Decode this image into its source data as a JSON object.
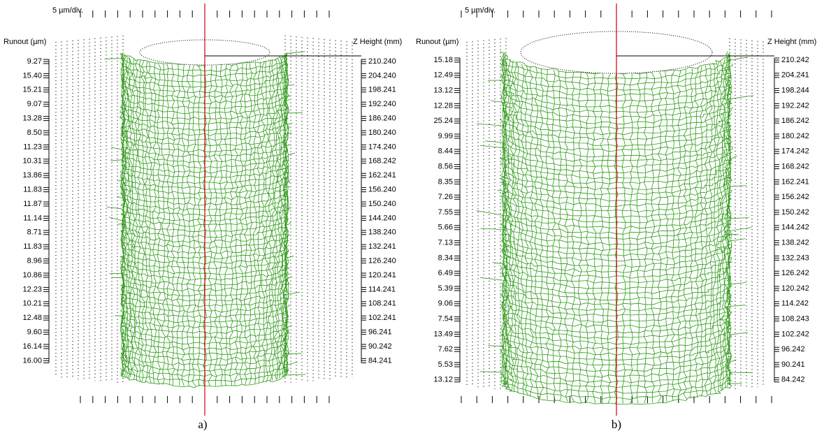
{
  "panels": [
    {
      "scale": "5 µm/div.",
      "left_title": "Runout (µm)",
      "right_title": "Z Height (mm)",
      "runout": [
        "9.27",
        "15.40",
        "15.21",
        "9.07",
        "13.28",
        "8.50",
        "11.23",
        "10.31",
        "13.86",
        "11.83",
        "11.87",
        "11.14",
        "8.71",
        "11.83",
        "8.96",
        "10.86",
        "12.23",
        "10.21",
        "12.48",
        "9.60",
        "16.14",
        "16.00"
      ],
      "z_height": [
        "210.240",
        "204.240",
        "198.241",
        "192.240",
        "186.240",
        "180.240",
        "174.240",
        "168.242",
        "162.241",
        "156.240",
        "150.240",
        "144.240",
        "138.240",
        "132.241",
        "126.240",
        "120.241",
        "114.241",
        "108.241",
        "102.241",
        "96.241",
        "90.242",
        "84.241"
      ],
      "caption": "a)"
    },
    {
      "scale": "5 µm/div.",
      "left_title": "Runout (µm)",
      "right_title": "Z Height (mm)",
      "runout": [
        "15.18",
        "12.49",
        "13.12",
        "12.28",
        "25.24",
        "9.99",
        "8.44",
        "8.56",
        "8.35",
        "7.26",
        "7.55",
        "5.66",
        "7.13",
        "8.34",
        "6.49",
        "5.39",
        "9.06",
        "7.54",
        "13.49",
        "7.62",
        "5.53",
        "13.12"
      ],
      "z_height": [
        "210.242",
        "204.241",
        "198.244",
        "192.242",
        "186.242",
        "180.242",
        "174.242",
        "168.242",
        "162.241",
        "156.242",
        "150.242",
        "144.242",
        "138.242",
        "132.243",
        "126.242",
        "120.242",
        "114.242",
        "108.243",
        "102.242",
        "96.242",
        "90.241",
        "84.242"
      ],
      "caption": "b)"
    }
  ]
}
